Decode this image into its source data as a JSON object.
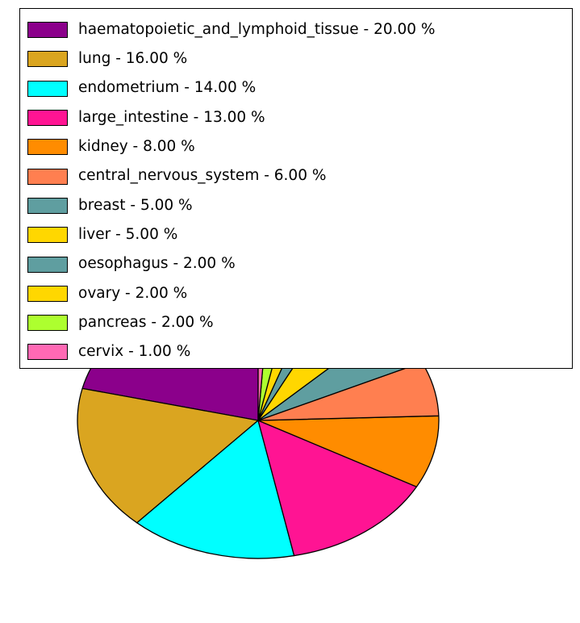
{
  "chart_data": {
    "type": "pie",
    "title": "",
    "unit": "%",
    "legend_position": "upper left",
    "start_angle_deg": 90,
    "direction": "counterclockwise",
    "values_sum": 94,
    "normalized": true,
    "edge_color": "#000000",
    "background_color": "#ffffff",
    "slices": [
      {
        "label": "haematopoietic_and_lymphoid_tissue",
        "value": 20.0,
        "color": "#8B008B"
      },
      {
        "label": "lung",
        "value": 16.0,
        "color": "#DAA520"
      },
      {
        "label": "endometrium",
        "value": 14.0,
        "color": "#00FFFF"
      },
      {
        "label": "large_intestine",
        "value": 13.0,
        "color": "#FF1493"
      },
      {
        "label": "kidney",
        "value": 8.0,
        "color": "#FF8C00"
      },
      {
        "label": "central_nervous_system",
        "value": 6.0,
        "color": "#FF7F50"
      },
      {
        "label": "breast",
        "value": 5.0,
        "color": "#5F9EA0"
      },
      {
        "label": "liver",
        "value": 5.0,
        "color": "#FFD700"
      },
      {
        "label": "oesophagus",
        "value": 2.0,
        "color": "#5F9EA0"
      },
      {
        "label": "ovary",
        "value": 2.0,
        "color": "#FFD700"
      },
      {
        "label": "pancreas",
        "value": 2.0,
        "color": "#ADFF2F"
      },
      {
        "label": "cervix",
        "value": 1.0,
        "color": "#FF69B4"
      }
    ],
    "legend_label_separator": " - ",
    "legend_value_suffix": " %"
  }
}
